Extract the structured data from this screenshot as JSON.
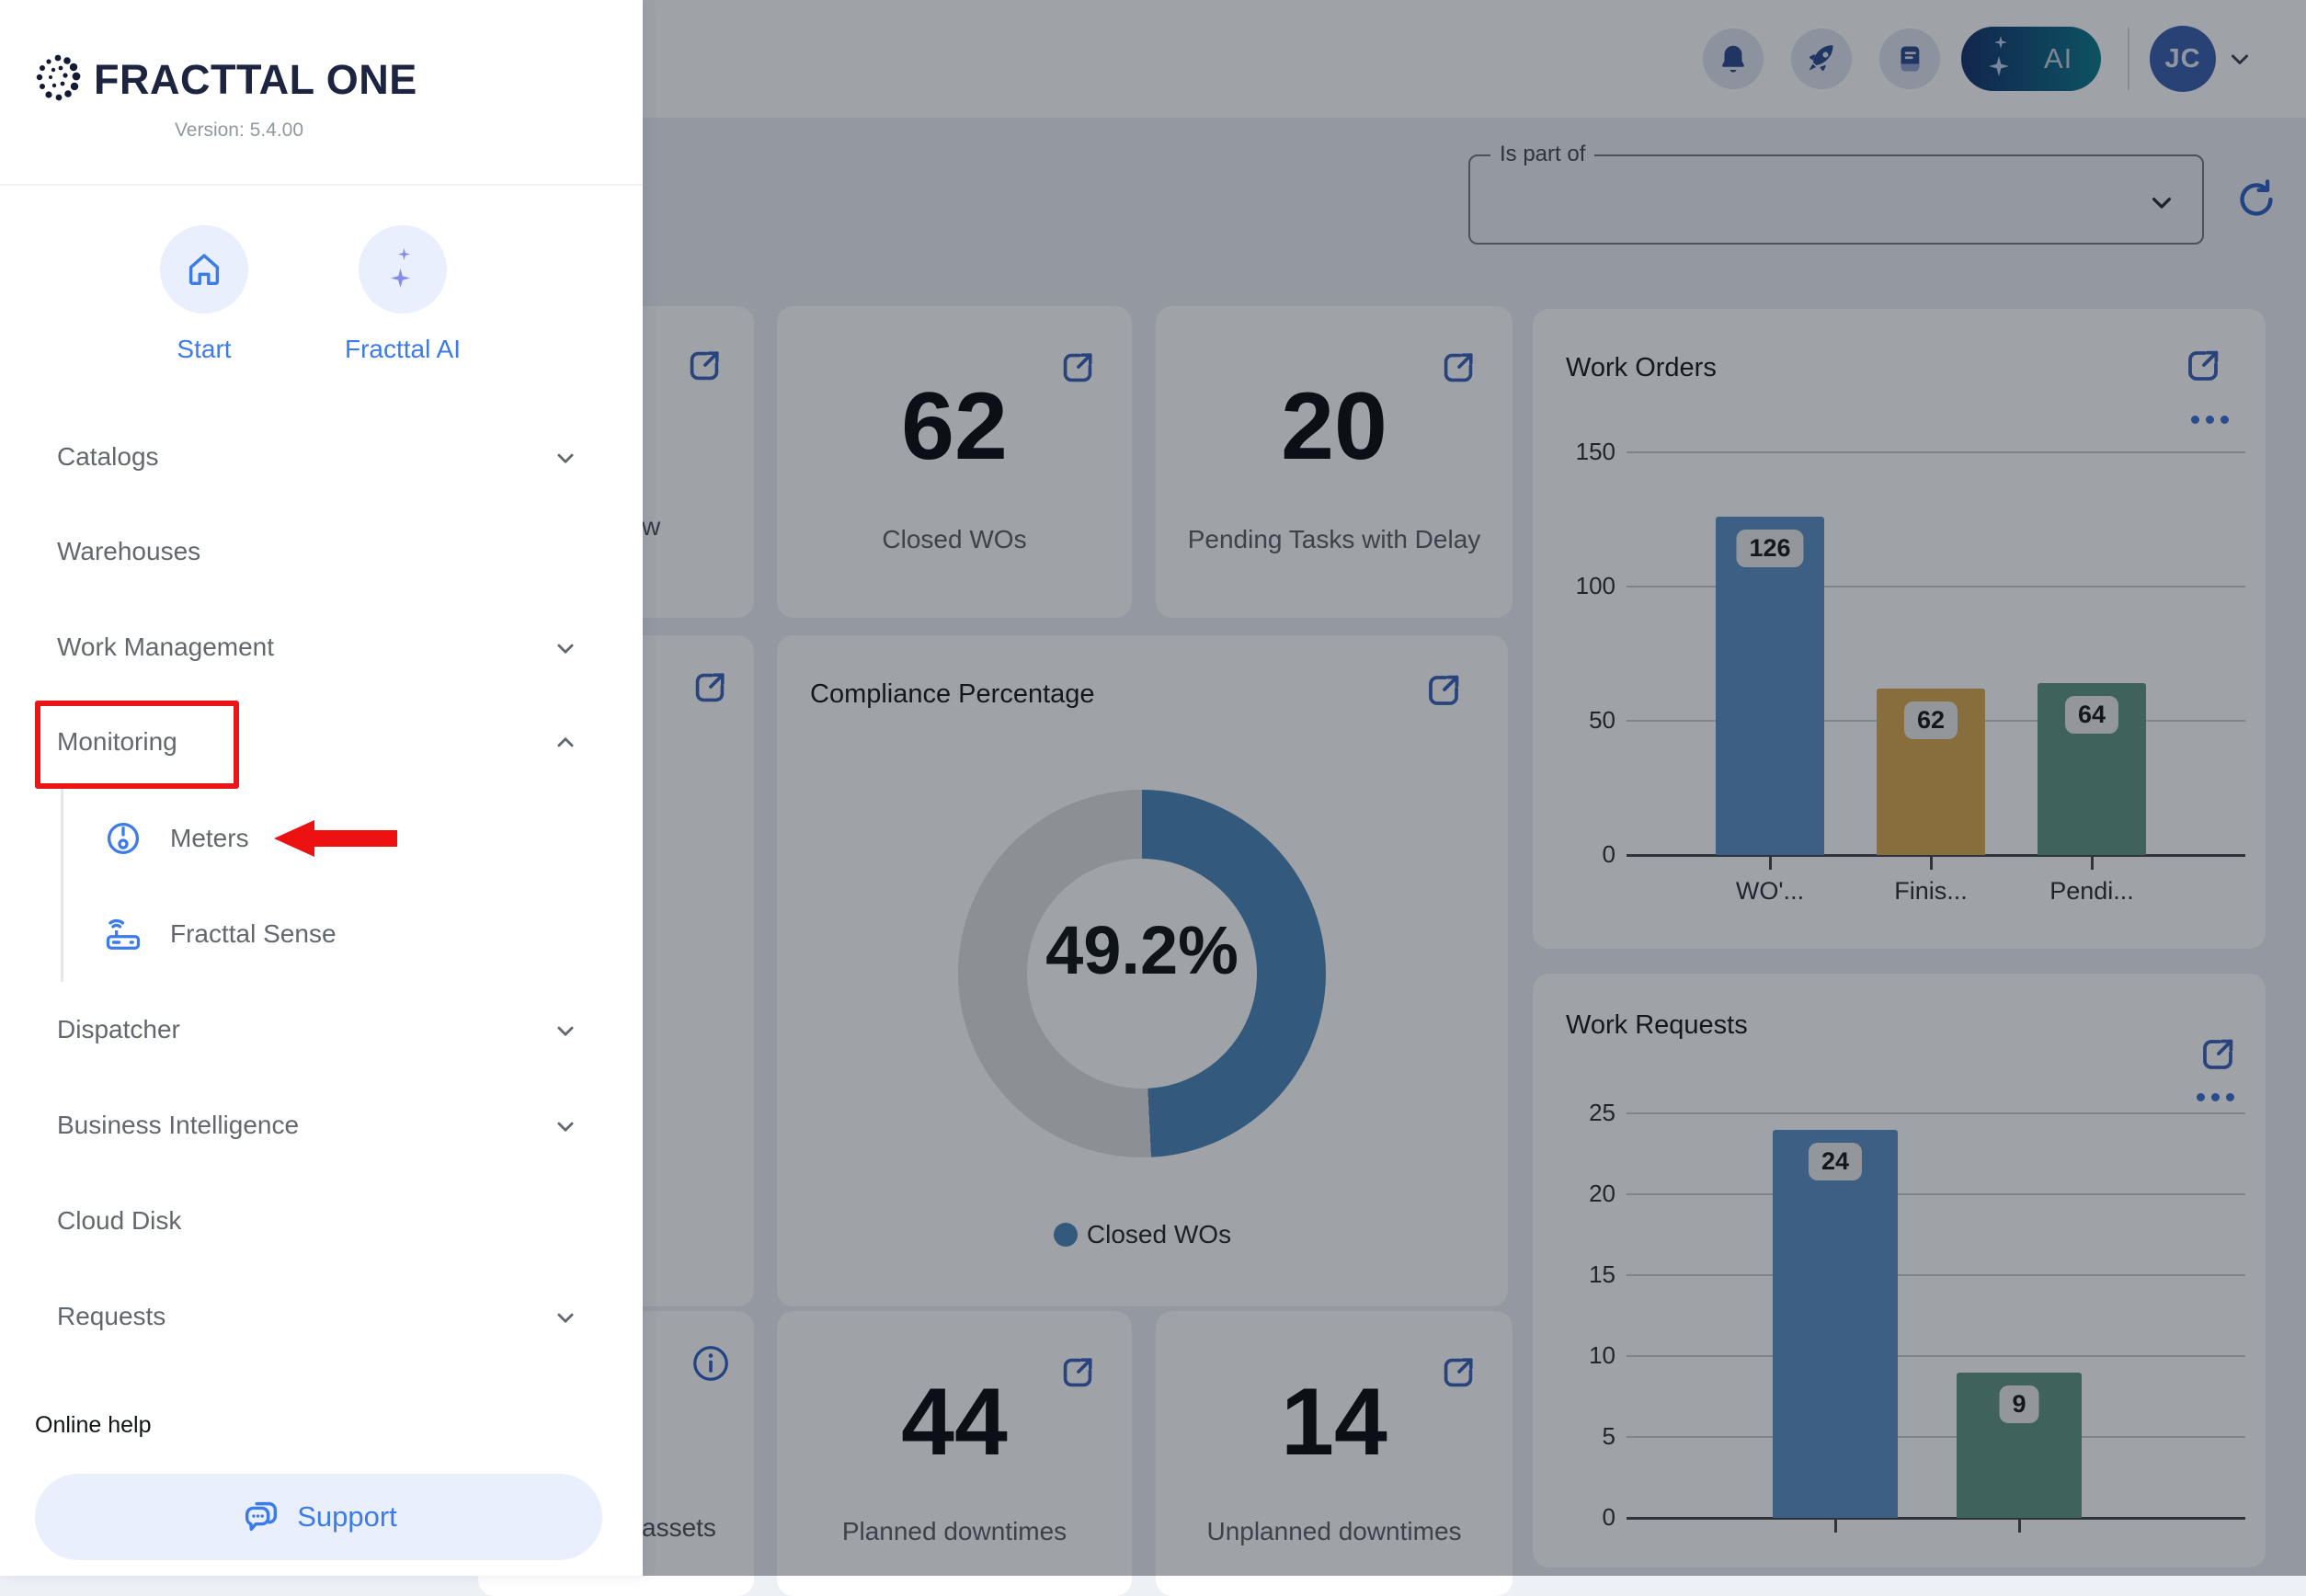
{
  "sidebar": {
    "brand": "FRACTTAL ONE",
    "version": "Version: 5.4.00",
    "shortcuts": [
      {
        "label": "Start"
      },
      {
        "label": "Fracttal AI"
      }
    ],
    "items": [
      {
        "label": "Catalogs",
        "chevron": "down"
      },
      {
        "label": "Warehouses",
        "chevron": "none"
      },
      {
        "label": "Work Management",
        "chevron": "down"
      },
      {
        "label": "Monitoring",
        "chevron": "up",
        "highlighted": true
      },
      {
        "label": "Dispatcher",
        "chevron": "down"
      },
      {
        "label": "Business Intelligence",
        "chevron": "down"
      },
      {
        "label": "Cloud Disk",
        "chevron": "none"
      },
      {
        "label": "Requests",
        "chevron": "down"
      }
    ],
    "submenu": [
      {
        "label": "Meters",
        "annotated": true
      },
      {
        "label": "Fracttal Sense"
      }
    ],
    "online_help": "Online help",
    "support_label": "Support"
  },
  "header": {
    "ai_label": "AI",
    "avatar_initials": "JC",
    "icons": [
      "bell-icon",
      "rocket-icon",
      "changelog-book-icon"
    ]
  },
  "filter": {
    "label": "Is part of",
    "value": ""
  },
  "cards": {
    "partial_top": {
      "label": "w"
    },
    "closed_wos": {
      "value": "62",
      "label": "Closed WOs"
    },
    "pending": {
      "value": "20",
      "label": "Pending Tasks with Delay"
    },
    "planned": {
      "value": "44",
      "label": "Planned downtimes"
    },
    "unplanned": {
      "value": "14",
      "label": "Unplanned downtimes"
    },
    "partial_bottom": {
      "label": "assets"
    }
  },
  "colors": {
    "accent_blue": "#3d7be8",
    "annotation_red": "#e81616",
    "ai_gradient_start": "#14316b",
    "ai_gradient_end": "#0d7a8e"
  },
  "chart_data": [
    {
      "id": "work_orders",
      "type": "bar",
      "title": "Work Orders",
      "categories": [
        "WO'...",
        "Finis...",
        "Pendi..."
      ],
      "values": [
        126,
        62,
        64
      ],
      "colors": [
        "#5b8fc4",
        "#d9a84f",
        "#5f9682"
      ],
      "y_ticks": [
        0,
        50,
        100,
        150
      ],
      "ylim": [
        0,
        150
      ],
      "grid": true,
      "legend_position": "none"
    },
    {
      "id": "work_requests",
      "type": "bar",
      "title": "Work Requests",
      "categories": [
        "",
        ""
      ],
      "values": [
        24,
        9
      ],
      "colors": [
        "#5b8fc4",
        "#5f9682"
      ],
      "y_ticks": [
        0,
        5,
        10,
        15,
        20,
        25
      ],
      "ylim": [
        0,
        25
      ],
      "grid": true,
      "legend_position": "none"
    },
    {
      "id": "compliance",
      "type": "donut",
      "title": "Compliance Percentage",
      "value": 49.2,
      "label": "49.2%",
      "legend": "Closed WOs",
      "color": "#4c86b8",
      "track": "#e0e0e0",
      "legend_position": "bottom"
    }
  ]
}
